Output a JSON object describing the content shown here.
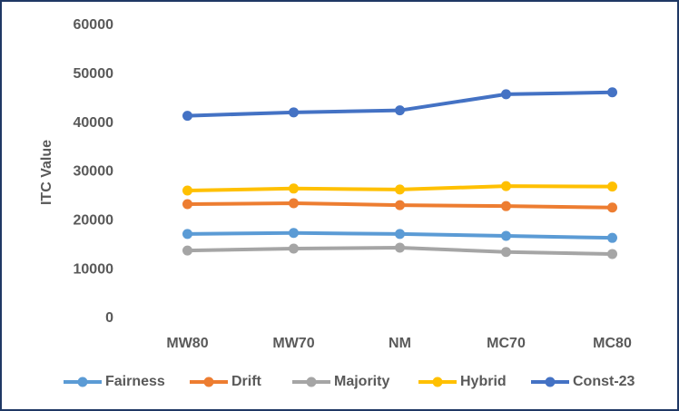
{
  "chart_data": {
    "type": "line",
    "y_label": "ITC Value",
    "categories": [
      "MW80",
      "MW70",
      "NM",
      "MC70",
      "MC80"
    ],
    "series": [
      {
        "name": "Fairness",
        "color": "#5b9bd5",
        "values": [
          17300,
          17500,
          17300,
          16900,
          16500
        ]
      },
      {
        "name": "Drift",
        "color": "#ed7d31",
        "values": [
          23400,
          23600,
          23200,
          23000,
          22700
        ]
      },
      {
        "name": "Majority",
        "color": "#a5a5a5",
        "values": [
          13900,
          14300,
          14500,
          13600,
          13200
        ]
      },
      {
        "name": "Hybrid",
        "color": "#ffc000",
        "values": [
          26200,
          26600,
          26400,
          27100,
          27000
        ]
      },
      {
        "name": "Const-23",
        "color": "#4472c4",
        "values": [
          41500,
          42200,
          42600,
          45900,
          46300
        ]
      }
    ],
    "ylim": [
      0,
      60000
    ],
    "yticks": [
      0,
      10000,
      20000,
      30000,
      40000,
      50000,
      60000
    ],
    "grid": false,
    "legend": "bottom"
  }
}
